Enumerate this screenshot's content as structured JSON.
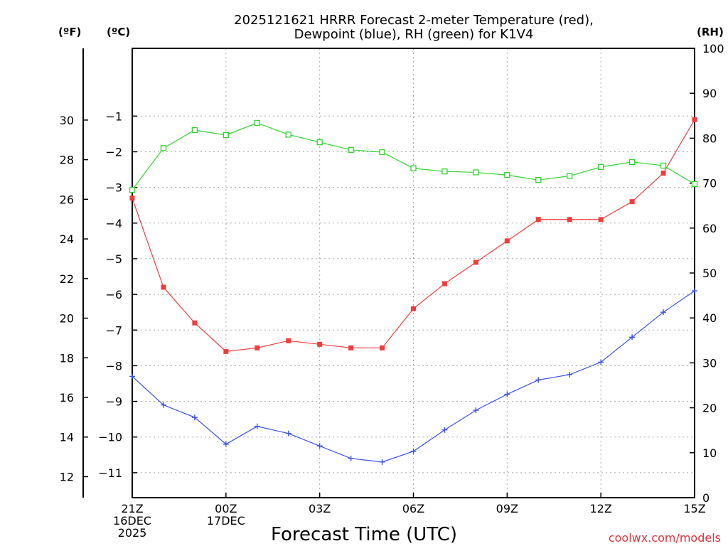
{
  "chart_data": {
    "type": "line",
    "title_line1": "2025121621 HRRR Forecast 2-meter Temperature (red),",
    "title_line2": "Dewpoint (blue), RH (green) for K1V4",
    "xlabel": "Forecast Time (UTC)",
    "credit": "coolwx.com/models",
    "units": {
      "fahrenheit": "(ºF)",
      "celsius": "(ºC)",
      "rh": "(RH)"
    },
    "x": [
      0,
      1,
      2,
      3,
      4,
      5,
      6,
      7,
      8,
      9,
      10,
      11,
      12,
      13,
      14,
      15,
      16,
      17,
      18
    ],
    "x_ticks": [
      {
        "x": 0,
        "lines": [
          "21Z",
          "16DEC",
          "2025"
        ]
      },
      {
        "x": 3,
        "lines": [
          "00Z",
          "17DEC"
        ]
      },
      {
        "x": 6,
        "lines": [
          "03Z"
        ]
      },
      {
        "x": 9,
        "lines": [
          "06Z"
        ]
      },
      {
        "x": 12,
        "lines": [
          "09Z"
        ]
      },
      {
        "x": 15,
        "lines": [
          "12Z"
        ]
      },
      {
        "x": 18,
        "lines": [
          "15Z"
        ]
      }
    ],
    "celsius_axis": {
      "range": [
        -11.7,
        0.9
      ],
      "ticks": [
        "−1",
        "−2",
        "−3",
        "−4",
        "−5",
        "−6",
        "−7",
        "−8",
        "−9",
        "−10",
        "−11"
      ],
      "tick_values": [
        -1,
        -2,
        -3,
        -4,
        -5,
        -6,
        -7,
        -8,
        -9,
        -10,
        -11
      ]
    },
    "fahrenheit_axis": {
      "ticks": [
        "12",
        "14",
        "16",
        "18",
        "20",
        "22",
        "24",
        "26",
        "28",
        "30"
      ],
      "tick_values": [
        12,
        14,
        16,
        18,
        20,
        22,
        24,
        26,
        28,
        30
      ]
    },
    "rh_axis": {
      "range": [
        0,
        100
      ],
      "ticks": [
        "0",
        "10",
        "20",
        "30",
        "40",
        "50",
        "60",
        "70",
        "80",
        "90",
        "100"
      ],
      "tick_values": [
        0,
        10,
        20,
        30,
        40,
        50,
        60,
        70,
        80,
        90,
        100
      ]
    },
    "series": [
      {
        "name": "Temperature",
        "color": "#f03c3c",
        "marker": "filled-square",
        "axis": "celsius",
        "values": [
          -3.3,
          -5.8,
          -6.8,
          -7.6,
          -7.5,
          -7.3,
          -7.4,
          -7.5,
          -7.5,
          -6.4,
          -5.7,
          -5.1,
          -4.5,
          -3.9,
          -3.9,
          -3.9,
          -3.4,
          -2.6,
          -1.1
        ]
      },
      {
        "name": "Dewpoint",
        "color": "#3c50f0",
        "marker": "plus",
        "axis": "celsius",
        "values": [
          -8.3,
          -9.1,
          -9.45,
          -10.2,
          -9.7,
          -9.9,
          -10.25,
          -10.6,
          -10.7,
          -10.4,
          -9.8,
          -9.25,
          -8.8,
          -8.4,
          -8.25,
          -7.9,
          -7.2,
          -6.5,
          -5.9
        ]
      },
      {
        "name": "RH",
        "color": "#32d232",
        "marker": "open-square",
        "axis": "rh",
        "values": [
          68.5,
          77.8,
          81.8,
          80.7,
          83.4,
          80.8,
          79.1,
          77.4,
          76.9,
          73.3,
          72.6,
          72.4,
          71.8,
          70.7,
          71.6,
          73.6,
          74.7,
          73.9,
          69.8
        ]
      }
    ]
  }
}
